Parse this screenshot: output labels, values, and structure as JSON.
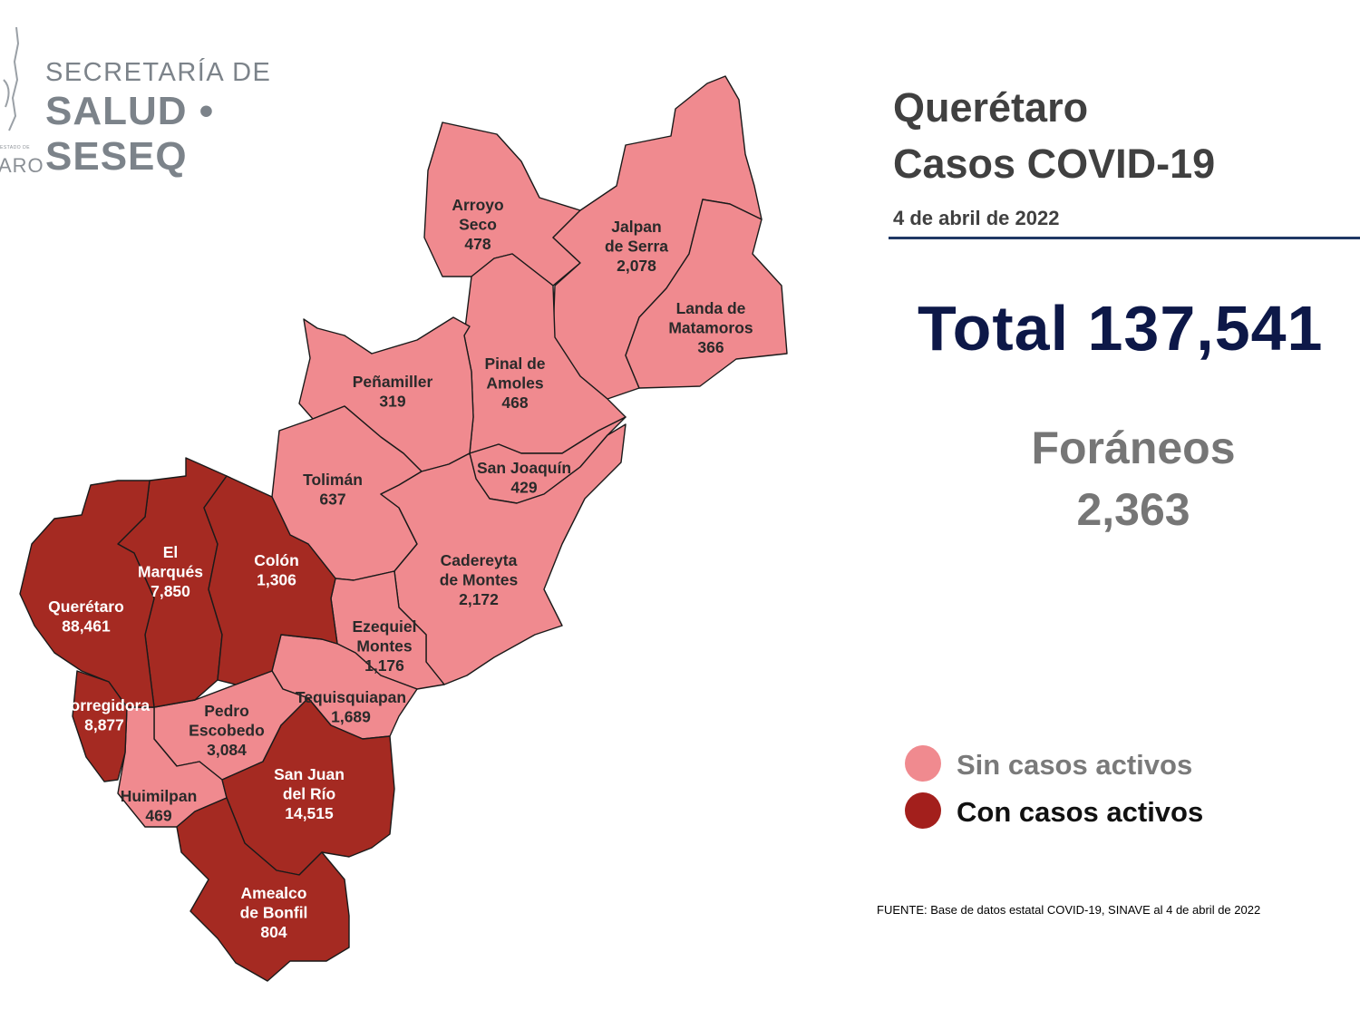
{
  "header": {
    "logo_line1": "SECRETARÍA DE",
    "logo_line2": "SALUD • SESEQ",
    "logo_small": "ESTADO DE",
    "logo_small2": "ARO"
  },
  "title": {
    "line1": "Querétaro",
    "line2": "Casos COVID-19",
    "date": "4 de abril de 2022"
  },
  "total": {
    "text": "Total 137,541"
  },
  "foraneos": {
    "label": "Foráneos",
    "value": "2,363"
  },
  "legend": {
    "items": [
      {
        "label": "Sin casos activos",
        "color": "#f08a8f",
        "text_color": "#7a7a7a"
      },
      {
        "label": "Con casos activos",
        "color": "#a31f1c",
        "text_color": "#111111"
      }
    ]
  },
  "colors": {
    "inactive": "#f08a8f",
    "active": "#a52a22",
    "border": "#1a1a1a"
  },
  "municipalities": [
    {
      "name": [
        "Arroyo",
        "Seco"
      ],
      "cases": "478",
      "active": false
    },
    {
      "name": [
        "Jalpan",
        "de Serra"
      ],
      "cases": "2,078",
      "active": false
    },
    {
      "name": [
        "Landa de",
        "Matamoros"
      ],
      "cases": "366",
      "active": false
    },
    {
      "name": [
        "Pinal de",
        "Amoles"
      ],
      "cases": "468",
      "active": false
    },
    {
      "name": [
        "Peñamiller"
      ],
      "cases": "319",
      "active": false
    },
    {
      "name": [
        "San Joaquín"
      ],
      "cases": "429",
      "active": false
    },
    {
      "name": [
        "Tolimán"
      ],
      "cases": "637",
      "active": false
    },
    {
      "name": [
        "Cadereyta",
        "de Montes"
      ],
      "cases": "2,172",
      "active": false
    },
    {
      "name": [
        "Ezequiel",
        "Montes"
      ],
      "cases": "1,176",
      "active": false
    },
    {
      "name": [
        "Tequisquiapan"
      ],
      "cases": "1,689",
      "active": false
    },
    {
      "name": [
        "Pedro",
        "Escobedo"
      ],
      "cases": "3,084",
      "active": false
    },
    {
      "name": [
        "Huimilpan"
      ],
      "cases": "469",
      "active": false
    },
    {
      "name": [
        "El",
        "Marqués"
      ],
      "cases": "7,850",
      "active": true
    },
    {
      "name": [
        "Colón"
      ],
      "cases": "1,306",
      "active": true
    },
    {
      "name": [
        "Querétaro"
      ],
      "cases": "88,461",
      "active": true
    },
    {
      "name": [
        "Corregidora"
      ],
      "cases": "8,877",
      "active": true
    },
    {
      "name": [
        "San Juan",
        "del Río"
      ],
      "cases": "14,515",
      "active": true
    },
    {
      "name": [
        "Amealco",
        "de Bonfil"
      ],
      "cases": "804",
      "active": true
    }
  ],
  "source": {
    "text": "FUENTE: Base de datos estatal  COVID-19,  SINAVE  al 4 de abril de 2022"
  }
}
